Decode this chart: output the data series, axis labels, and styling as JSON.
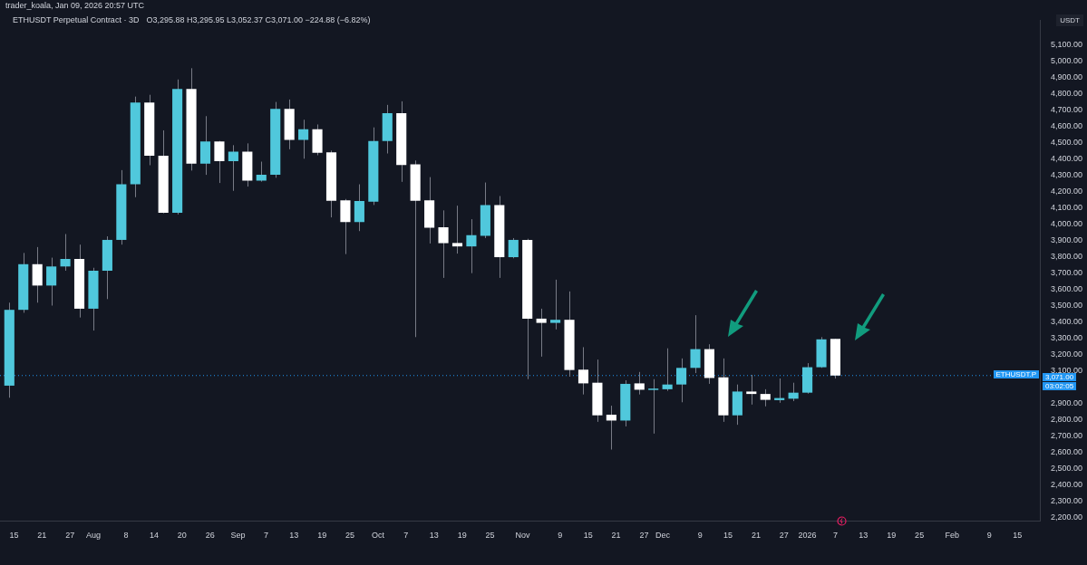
{
  "chart_data": {
    "type": "candlestick",
    "title": "ETHUSDT Perpetual Contract · 3D",
    "ylabel": "USDT",
    "annotations": [
      "trader_koala, Jan 09, 2026 20:57 UTC",
      "O3,295.88 H3,295.95 L3,052.37 C3,071.00 −224.88 (−6.82%)",
      "03:02:05",
      "3,071.00"
    ],
    "x": [
      "2025-07-14",
      "2025-07-17",
      "2025-07-20",
      "2025-07-23",
      "2025-07-26",
      "2025-07-29",
      "2025-08-01",
      "2025-08-04",
      "2025-08-07",
      "2025-08-10",
      "2025-08-13",
      "2025-08-16",
      "2025-08-19",
      "2025-08-22",
      "2025-08-25",
      "2025-08-28",
      "2025-08-31",
      "2025-09-03",
      "2025-09-06",
      "2025-09-09",
      "2025-09-12",
      "2025-09-15",
      "2025-09-18",
      "2025-09-21",
      "2025-09-24",
      "2025-09-27",
      "2025-09-30",
      "2025-10-03",
      "2025-10-06",
      "2025-10-09",
      "2025-10-12",
      "2025-10-15",
      "2025-10-18",
      "2025-10-21",
      "2025-10-24",
      "2025-10-27",
      "2025-10-30",
      "2025-11-02",
      "2025-11-05",
      "2025-11-08",
      "2025-11-11",
      "2025-11-14",
      "2025-11-17",
      "2025-11-20",
      "2025-11-23",
      "2025-11-26",
      "2025-11-29",
      "2025-12-02",
      "2025-12-05",
      "2025-12-08",
      "2025-12-11",
      "2025-12-14",
      "2025-12-17",
      "2025-12-20",
      "2025-12-23",
      "2025-12-26",
      "2025-12-29",
      "2026-01-01",
      "2026-01-04",
      "2026-01-07"
    ],
    "ohlc": [
      [
        3009,
        3518,
        2935,
        3474
      ],
      [
        3474,
        3823,
        3456,
        3754
      ],
      [
        3754,
        3859,
        3518,
        3623
      ],
      [
        3623,
        3794,
        3500,
        3740
      ],
      [
        3740,
        3939,
        3714,
        3786
      ],
      [
        3786,
        3874,
        3427,
        3481
      ],
      [
        3481,
        3732,
        3347,
        3714
      ],
      [
        3714,
        3925,
        3540,
        3903
      ],
      [
        3903,
        4331,
        3874,
        4244
      ],
      [
        4244,
        4782,
        4165,
        4746
      ],
      [
        4746,
        4793,
        4361,
        4419
      ],
      [
        4419,
        4575,
        4066,
        4070
      ],
      [
        4070,
        4887,
        4059,
        4829
      ],
      [
        4829,
        4956,
        4328,
        4371
      ],
      [
        4371,
        4662,
        4302,
        4506
      ],
      [
        4506,
        4510,
        4252,
        4386
      ],
      [
        4386,
        4484,
        4204,
        4444
      ],
      [
        4444,
        4495,
        4230,
        4266
      ],
      [
        4266,
        4383,
        4260,
        4302
      ],
      [
        4302,
        4749,
        4284,
        4706
      ],
      [
        4706,
        4764,
        4459,
        4517
      ],
      [
        4517,
        4640,
        4401,
        4582
      ],
      [
        4582,
        4611,
        4422,
        4437
      ],
      [
        4440,
        4451,
        4041,
        4143
      ],
      [
        4146,
        4154,
        3816,
        4012
      ],
      [
        4012,
        4244,
        3957,
        4141
      ],
      [
        4137,
        4593,
        4117,
        4510
      ],
      [
        4510,
        4731,
        4433,
        4680
      ],
      [
        4680,
        4753,
        4259,
        4362
      ],
      [
        4366,
        4390,
        3307,
        4143
      ],
      [
        4146,
        4288,
        3881,
        3977
      ],
      [
        3981,
        4084,
        3670,
        3883
      ],
      [
        3884,
        4113,
        3819,
        3863
      ],
      [
        3863,
        4030,
        3699,
        3932
      ],
      [
        3928,
        4255,
        3914,
        4117
      ],
      [
        4117,
        4172,
        3670,
        3797
      ],
      [
        3797,
        3914,
        3790,
        3903
      ],
      [
        3903,
        3910,
        3049,
        3420
      ],
      [
        3420,
        3481,
        3187,
        3394
      ],
      [
        3394,
        3659,
        3354,
        3413
      ],
      [
        3413,
        3587,
        3064,
        3105
      ],
      [
        3107,
        3245,
        2955,
        3023
      ],
      [
        3027,
        3169,
        2787,
        2827
      ],
      [
        2831,
        2886,
        2617,
        2795
      ],
      [
        2795,
        3042,
        2759,
        3020
      ],
      [
        3023,
        3093,
        2955,
        2984
      ],
      [
        2984,
        3049,
        2715,
        2991
      ],
      [
        2987,
        3238,
        2977,
        3016
      ],
      [
        3016,
        3176,
        2907,
        3118
      ],
      [
        3118,
        3441,
        3086,
        3233
      ],
      [
        3233,
        3263,
        3020,
        3056
      ],
      [
        3060,
        3176,
        2787,
        2827
      ],
      [
        2827,
        3016,
        2769,
        2973
      ],
      [
        2973,
        3075,
        2893,
        2958
      ],
      [
        2958,
        2987,
        2882,
        2922
      ],
      [
        2920,
        3053,
        2904,
        2933
      ],
      [
        2929,
        3027,
        2914,
        2966
      ],
      [
        2966,
        3147,
        2960,
        3122
      ],
      [
        3122,
        3307,
        3118,
        3293
      ],
      [
        3295.88,
        3295.95,
        3052.37,
        3071
      ]
    ],
    "colors": [
      "#50c8dc",
      "#50c8dc",
      "#ffffff",
      "#50c8dc",
      "#50c8dc",
      "#ffffff",
      "#50c8dc",
      "#50c8dc",
      "#50c8dc",
      "#50c8dc",
      "#ffffff",
      "#ffffff",
      "#50c8dc",
      "#ffffff",
      "#50c8dc",
      "#ffffff",
      "#50c8dc",
      "#ffffff",
      "#50c8dc",
      "#50c8dc",
      "#ffffff",
      "#50c8dc",
      "#ffffff",
      "#ffffff",
      "#ffffff",
      "#50c8dc",
      "#50c8dc",
      "#50c8dc",
      "#ffffff",
      "#ffffff",
      "#ffffff",
      "#ffffff",
      "#ffffff",
      "#50c8dc",
      "#50c8dc",
      "#ffffff",
      "#50c8dc",
      "#ffffff",
      "#ffffff",
      "#50c8dc",
      "#ffffff",
      "#ffffff",
      "#ffffff",
      "#ffffff",
      "#50c8dc",
      "#ffffff",
      "#50c8dc",
      "#50c8dc",
      "#50c8dc",
      "#50c8dc",
      "#ffffff",
      "#ffffff",
      "#50c8dc",
      "#ffffff",
      "#ffffff",
      "#50c8dc",
      "#50c8dc",
      "#50c8dc",
      "#50c8dc",
      "#ffffff"
    ],
    "ref_lines": [
      {
        "axis": "y",
        "value": 3071,
        "label": "ETHUSDT.P",
        "color": "#2196f3",
        "line_style": "dotted"
      }
    ],
    "xlim": [
      "2025-07-12",
      "2026-02-20"
    ],
    "xticks": [
      {
        "value": "2025-07-15",
        "label": "15"
      },
      {
        "value": "2025-07-21",
        "label": "21"
      },
      {
        "value": "2025-07-27",
        "label": "27"
      },
      {
        "value": "2025-08-01",
        "label": "Aug"
      },
      {
        "value": "2025-08-08",
        "label": "8"
      },
      {
        "value": "2025-08-14",
        "label": "14"
      },
      {
        "value": "2025-08-20",
        "label": "20"
      },
      {
        "value": "2025-08-26",
        "label": "26"
      },
      {
        "value": "2025-09-01",
        "label": "Sep"
      },
      {
        "value": "2025-09-07",
        "label": "7"
      },
      {
        "value": "2025-09-13",
        "label": "13"
      },
      {
        "value": "2025-09-19",
        "label": "19"
      },
      {
        "value": "2025-09-25",
        "label": "25"
      },
      {
        "value": "2025-10-01",
        "label": "Oct"
      },
      {
        "value": "2025-10-07",
        "label": "7"
      },
      {
        "value": "2025-10-13",
        "label": "13"
      },
      {
        "value": "2025-10-19",
        "label": "19"
      },
      {
        "value": "2025-10-25",
        "label": "25"
      },
      {
        "value": "2025-11-01",
        "label": "Nov"
      },
      {
        "value": "2025-11-09",
        "label": "9"
      },
      {
        "value": "2025-11-15",
        "label": "15"
      },
      {
        "value": "2025-11-21",
        "label": "21"
      },
      {
        "value": "2025-11-27",
        "label": "27"
      },
      {
        "value": "2025-12-01",
        "label": "Dec"
      },
      {
        "value": "2025-12-09",
        "label": "9"
      },
      {
        "value": "2025-12-15",
        "label": "15"
      },
      {
        "value": "2025-12-21",
        "label": "21"
      },
      {
        "value": "2025-12-27",
        "label": "27"
      },
      {
        "value": "2026-01-01",
        "label": "2026"
      },
      {
        "value": "2026-01-07",
        "label": "7"
      },
      {
        "value": "2026-01-13",
        "label": "13"
      },
      {
        "value": "2026-01-19",
        "label": "19"
      },
      {
        "value": "2026-01-25",
        "label": "25"
      },
      {
        "value": "2026-02-01",
        "label": "Feb"
      },
      {
        "value": "2026-02-09",
        "label": "9"
      },
      {
        "value": "2026-02-15",
        "label": "15"
      }
    ],
    "ylim": [
      2180,
      5250
    ],
    "yticks": [
      {
        "value": 2200,
        "label": "2,200.00"
      },
      {
        "value": 2300,
        "label": "2,300.00"
      },
      {
        "value": 2400,
        "label": "2,400.00"
      },
      {
        "value": 2500,
        "label": "2,500.00"
      },
      {
        "value": 2600,
        "label": "2,600.00"
      },
      {
        "value": 2700,
        "label": "2,700.00"
      },
      {
        "value": 2800,
        "label": "2,800.00"
      },
      {
        "value": 2900,
        "label": "2,900.00"
      },
      {
        "value": 3100,
        "label": "3,100.00"
      },
      {
        "value": 3200,
        "label": "3,200.00"
      },
      {
        "value": 3300,
        "label": "3,300.00"
      },
      {
        "value": 3400,
        "label": "3,400.00"
      },
      {
        "value": 3500,
        "label": "3,500.00"
      },
      {
        "value": 3600,
        "label": "3,600.00"
      },
      {
        "value": 3700,
        "label": "3,700.00"
      },
      {
        "value": 3800,
        "label": "3,800.00"
      },
      {
        "value": 3900,
        "label": "3,900.00"
      },
      {
        "value": 4000,
        "label": "4,000.00"
      },
      {
        "value": 4100,
        "label": "4,100.00"
      },
      {
        "value": 4200,
        "label": "4,200.00"
      },
      {
        "value": 4300,
        "label": "4,300.00"
      },
      {
        "value": 4400,
        "label": "4,400.00"
      },
      {
        "value": 4500,
        "label": "4,500.00"
      },
      {
        "value": 4600,
        "label": "4,600.00"
      },
      {
        "value": 4700,
        "label": "4,700.00"
      },
      {
        "value": 4800,
        "label": "4,800.00"
      },
      {
        "value": 4900,
        "label": "4,900.00"
      },
      {
        "value": 5000,
        "label": "5,000.00"
      },
      {
        "value": 5100,
        "label": "5,100.00"
      }
    ]
  }
}
